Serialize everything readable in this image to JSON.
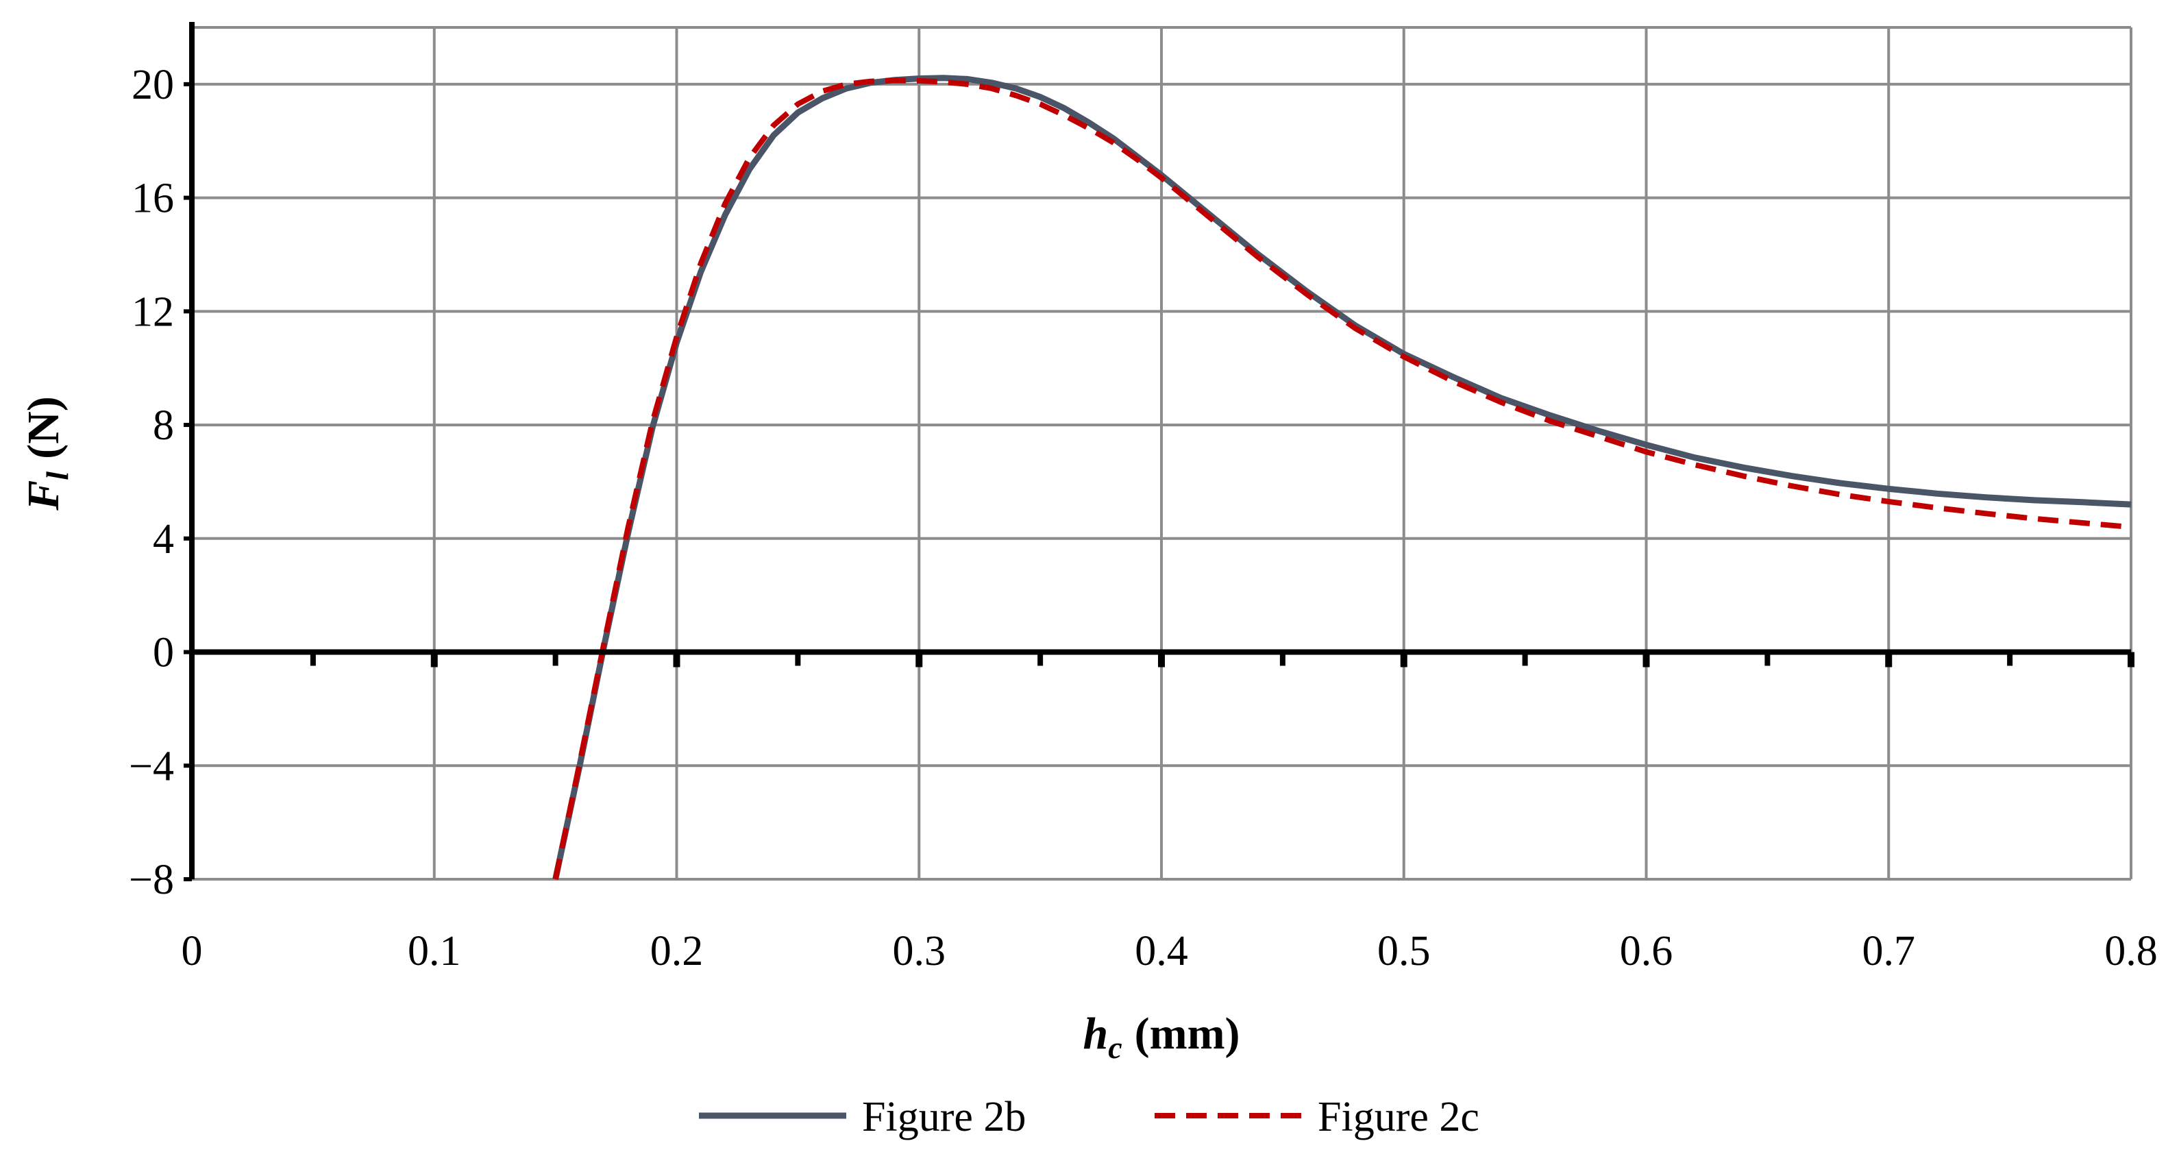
{
  "chart_data": {
    "type": "line",
    "xlabel": {
      "main": "h",
      "sub": "c",
      "unit": "(mm)"
    },
    "ylabel": {
      "main": "F",
      "sub": "l",
      "unit": "(N)"
    },
    "xlim": [
      0,
      0.8
    ],
    "ylim": [
      -8,
      22
    ],
    "x_ticks": [
      0,
      0.1,
      0.2,
      0.3,
      0.4,
      0.5,
      0.6,
      0.7,
      0.8
    ],
    "x_tick_labels": [
      "0",
      "0.1",
      "0.2",
      "0.3",
      "0.4",
      "0.5",
      "0.6",
      "0.7",
      "0.8"
    ],
    "x_minor_ticks": [
      0.05,
      0.15,
      0.25,
      0.35,
      0.45,
      0.55,
      0.65,
      0.75
    ],
    "y_ticks": [
      -8,
      -4,
      0,
      4,
      8,
      12,
      16,
      20
    ],
    "y_tick_labels": [
      "−8",
      "−4",
      "0",
      "4",
      "8",
      "12",
      "16",
      "20"
    ],
    "grid": true,
    "legend": {
      "placement": "bottom-center"
    },
    "series": [
      {
        "name": "Figure 2b",
        "color": "#4a5568",
        "style": "solid",
        "x": [
          0.15,
          0.16,
          0.17,
          0.18,
          0.19,
          0.2,
          0.21,
          0.22,
          0.23,
          0.24,
          0.25,
          0.26,
          0.27,
          0.28,
          0.29,
          0.3,
          0.31,
          0.32,
          0.33,
          0.34,
          0.35,
          0.36,
          0.37,
          0.38,
          0.39,
          0.4,
          0.42,
          0.44,
          0.46,
          0.48,
          0.5,
          0.52,
          0.54,
          0.56,
          0.58,
          0.6,
          0.62,
          0.64,
          0.66,
          0.68,
          0.7,
          0.72,
          0.74,
          0.76,
          0.78,
          0.8
        ],
        "y": [
          -8.2,
          -4.0,
          0.2,
          4.2,
          7.9,
          10.9,
          13.4,
          15.4,
          17.0,
          18.2,
          19.0,
          19.5,
          19.85,
          20.05,
          20.15,
          20.2,
          20.22,
          20.18,
          20.05,
          19.85,
          19.55,
          19.15,
          18.65,
          18.1,
          17.45,
          16.8,
          15.4,
          14.0,
          12.7,
          11.5,
          10.5,
          9.7,
          8.95,
          8.35,
          7.8,
          7.3,
          6.85,
          6.5,
          6.2,
          5.95,
          5.75,
          5.58,
          5.45,
          5.35,
          5.28,
          5.2
        ]
      },
      {
        "name": "Figure 2c",
        "color": "#c00000",
        "style": "dashed",
        "x": [
          0.15,
          0.16,
          0.17,
          0.18,
          0.19,
          0.2,
          0.21,
          0.22,
          0.23,
          0.24,
          0.25,
          0.26,
          0.27,
          0.28,
          0.29,
          0.3,
          0.31,
          0.32,
          0.33,
          0.34,
          0.35,
          0.36,
          0.37,
          0.38,
          0.39,
          0.4,
          0.42,
          0.44,
          0.46,
          0.48,
          0.5,
          0.52,
          0.54,
          0.56,
          0.58,
          0.6,
          0.62,
          0.64,
          0.66,
          0.68,
          0.7,
          0.72,
          0.74,
          0.76,
          0.78,
          0.8
        ],
        "y": [
          -8.3,
          -3.9,
          0.3,
          4.4,
          8.1,
          11.1,
          13.7,
          15.8,
          17.4,
          18.55,
          19.3,
          19.75,
          20.0,
          20.1,
          20.13,
          20.12,
          20.08,
          20.0,
          19.85,
          19.6,
          19.3,
          18.9,
          18.45,
          17.95,
          17.35,
          16.7,
          15.3,
          13.9,
          12.6,
          11.4,
          10.4,
          9.55,
          8.8,
          8.15,
          7.6,
          7.05,
          6.6,
          6.2,
          5.85,
          5.55,
          5.3,
          5.08,
          4.88,
          4.7,
          4.55,
          4.4
        ]
      }
    ]
  }
}
